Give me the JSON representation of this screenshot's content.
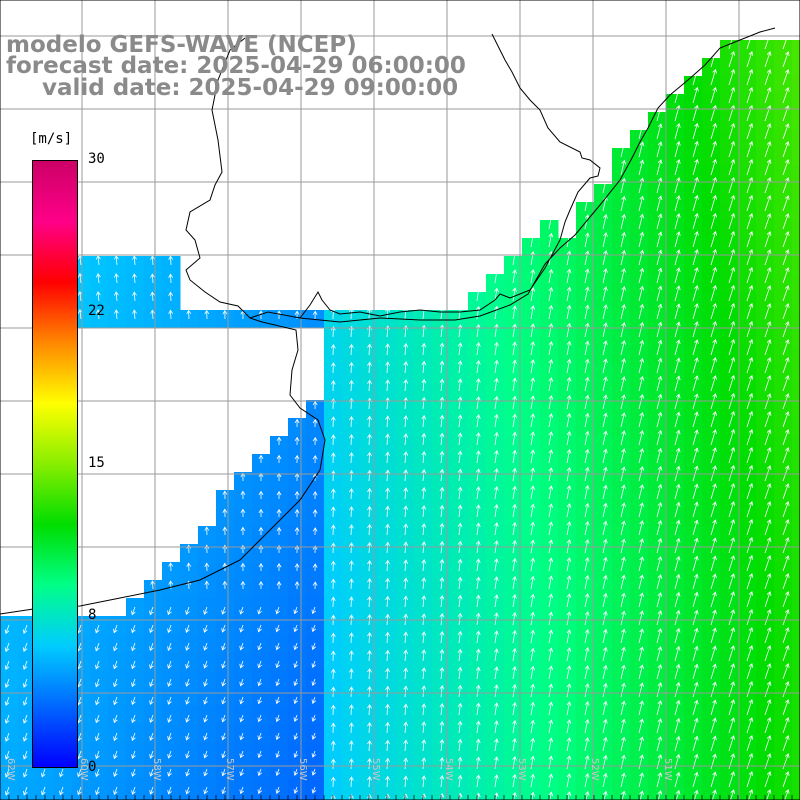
{
  "title": {
    "line1": "modelo GEFS-WAVE (NCEP)",
    "line2": "forecast date: 2025-04-29 06:00:00",
    "line3": "valid date: 2025-04-29 09:00:00"
  },
  "colorbar": {
    "unit": "[m/s]",
    "ticks": [
      "30",
      "22",
      "15",
      "8",
      "0"
    ],
    "tick_values": [
      30,
      22,
      15,
      8,
      0
    ],
    "range": [
      0,
      30
    ],
    "colors": [
      "#0000ff",
      "#0066ff",
      "#00ccff",
      "#00ff88",
      "#00dd00",
      "#88ee00",
      "#ffff00",
      "#ff8800",
      "#ff0000",
      "#ff0088",
      "#cc0066"
    ]
  },
  "map": {
    "variable": "wind speed and direction",
    "longitude_labels": [
      "62W",
      "60W",
      "58W",
      "57W",
      "56W",
      "55W",
      "54W",
      "53W",
      "52W",
      "51W"
    ],
    "colors": {
      "land": "#ffffff",
      "coast": "#000000",
      "grid": "#9a9a9a",
      "title_text": "#8a8a8a"
    }
  }
}
